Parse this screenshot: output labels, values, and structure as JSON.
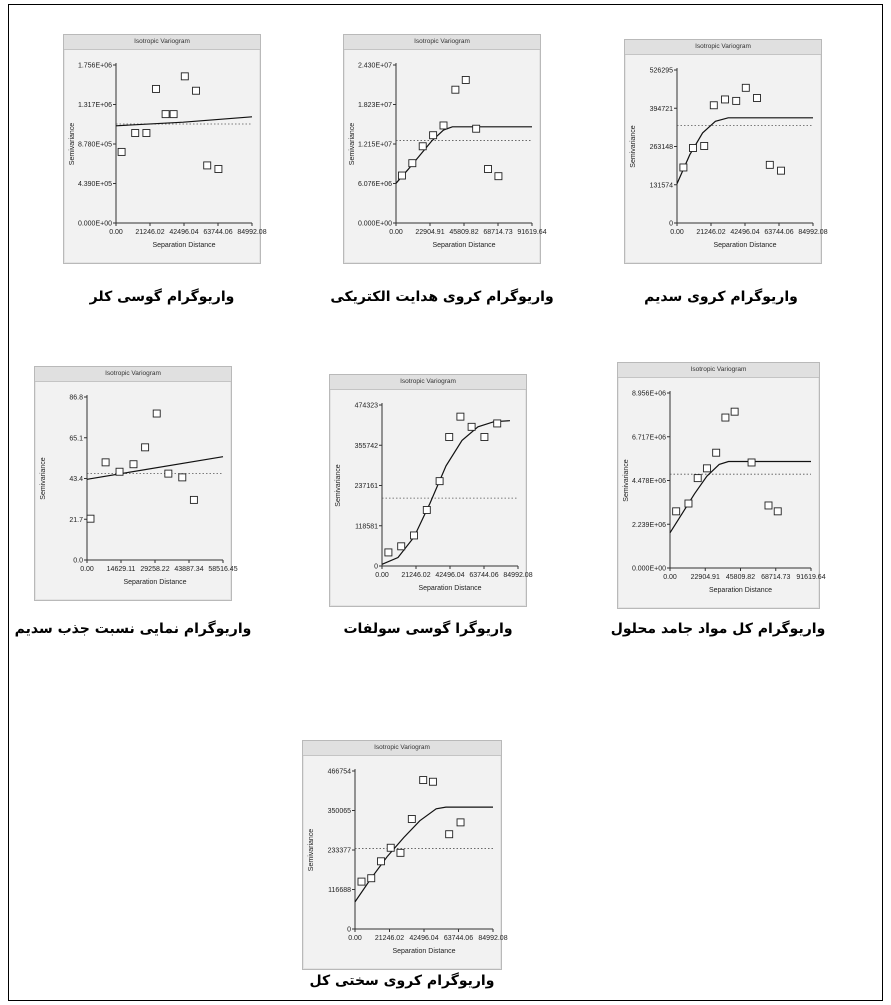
{
  "panel_title": "Isotropic Variogram",
  "chart_data": [
    {
      "type": "scatter",
      "caption": "واریوگرام گوسی کلر",
      "title": "Isotropic Variogram",
      "xlabel": "Separation Distance",
      "ylabel": "Semivariance",
      "y_ticks": [
        "0.000E+00",
        "4.390E+05",
        "8.780E+05",
        "1.317E+06",
        "1.756E+06"
      ],
      "ylim": [
        0,
        1756000
      ],
      "x_ticks": [
        "0.00",
        "21246.02",
        "42496.04",
        "63744.06",
        "84992.08"
      ],
      "xlim": [
        0,
        84992.08
      ],
      "points": [
        [
          3500,
          790000
        ],
        [
          12000,
          1000000
        ],
        [
          19000,
          1000000
        ],
        [
          25000,
          1490000
        ],
        [
          31000,
          1210000
        ],
        [
          36000,
          1210000
        ],
        [
          43000,
          1630000
        ],
        [
          50000,
          1470000
        ],
        [
          57000,
          640000
        ],
        [
          64000,
          600000
        ]
      ],
      "model_curve": [
        [
          0,
          1080000
        ],
        [
          42000,
          1120000
        ],
        [
          84992.08,
          1180000
        ]
      ],
      "sill_line": 1100000
    },
    {
      "type": "scatter",
      "caption": "واریوگرام کروی هدایت الکتریکی",
      "title": "Isotropic Variogram",
      "xlabel": "Separation Distance",
      "ylabel": "Semivariance",
      "y_ticks": [
        "0.000E+00",
        "6.076E+06",
        "1.215E+07",
        "1.823E+07",
        "2.430E+07"
      ],
      "ylim": [
        0,
        24300000
      ],
      "x_ticks": [
        "0.00",
        "22904.91",
        "45809.82",
        "68714.73",
        "91619.64"
      ],
      "xlim": [
        0,
        91619.64
      ],
      "points": [
        [
          4000,
          7300000
        ],
        [
          11000,
          9200000
        ],
        [
          18000,
          11800000
        ],
        [
          25000,
          13500000
        ],
        [
          32000,
          15000000
        ],
        [
          40000,
          20500000
        ],
        [
          47000,
          22000000
        ],
        [
          54000,
          14500000
        ],
        [
          62000,
          8300000
        ],
        [
          69000,
          7200000
        ]
      ],
      "model_curve": [
        [
          0,
          6100000
        ],
        [
          8000,
          8200000
        ],
        [
          16000,
          10400000
        ],
        [
          24000,
          12600000
        ],
        [
          32000,
          14300000
        ],
        [
          38000,
          14800000
        ],
        [
          91619.64,
          14800000
        ]
      ],
      "sill_line": 12700000
    },
    {
      "type": "scatter",
      "caption": "واریوگرام کروی سدیم",
      "title": "Isotropic Variogram",
      "xlabel": "Separation Distance",
      "ylabel": "Semivariance",
      "y_ticks": [
        "0",
        "131574",
        "263148",
        "394721",
        "526295"
      ],
      "ylim": [
        0,
        526295
      ],
      "x_ticks": [
        "0.00",
        "21246.02",
        "42496.04",
        "63744.06",
        "84992.08"
      ],
      "xlim": [
        0,
        84992.08
      ],
      "points": [
        [
          4000,
          191000
        ],
        [
          10000,
          258000
        ],
        [
          17000,
          265000
        ],
        [
          23000,
          405000
        ],
        [
          30000,
          425000
        ],
        [
          37000,
          420000
        ],
        [
          43000,
          465000
        ],
        [
          50000,
          430000
        ],
        [
          58000,
          200000
        ],
        [
          65000,
          180000
        ]
      ],
      "model_curve": [
        [
          0,
          135000
        ],
        [
          8000,
          235000
        ],
        [
          16000,
          310000
        ],
        [
          24000,
          350000
        ],
        [
          32000,
          362000
        ],
        [
          84992.08,
          362000
        ]
      ],
      "sill_line": 335000
    },
    {
      "type": "scatter",
      "caption": "واریوگرام نمایی نسبت جذب سدیم",
      "title": "Isotropic Variogram",
      "xlabel": "Separation Distance",
      "ylabel": "Semivariance",
      "y_ticks": [
        "0.0",
        "21.7",
        "43.4",
        "65.1",
        "86.8"
      ],
      "ylim": [
        0,
        86.8
      ],
      "x_ticks": [
        "0.00",
        "14629.11",
        "29258.22",
        "43887.34",
        "58516.45"
      ],
      "xlim": [
        0,
        58516.45
      ],
      "points": [
        [
          1500,
          22
        ],
        [
          8000,
          52
        ],
        [
          14000,
          47
        ],
        [
          20000,
          51
        ],
        [
          25000,
          60
        ],
        [
          30000,
          78
        ],
        [
          35000,
          46
        ],
        [
          41000,
          44
        ],
        [
          46000,
          32
        ]
      ],
      "model_curve": [
        [
          0,
          43
        ],
        [
          58516.45,
          55
        ]
      ],
      "sill_line": 46
    },
    {
      "type": "scatter",
      "caption": "واریوگرا گوسی سولفات",
      "title": "Isotropic Variogram",
      "xlabel": "Separation Distance",
      "ylabel": "Semivariance",
      "y_ticks": [
        "0",
        "118581",
        "237161",
        "355742",
        "474323"
      ],
      "ylim": [
        0,
        474323
      ],
      "x_ticks": [
        "0.00",
        "21246.02",
        "42496.04",
        "63744.06",
        "84992.08"
      ],
      "xlim": [
        0,
        84992.08
      ],
      "points": [
        [
          4000,
          40000
        ],
        [
          12000,
          58000
        ],
        [
          20000,
          90000
        ],
        [
          28000,
          165000
        ],
        [
          36000,
          250000
        ],
        [
          42000,
          380000
        ],
        [
          49000,
          440000
        ],
        [
          56000,
          410000
        ],
        [
          64000,
          380000
        ],
        [
          72000,
          420000
        ]
      ],
      "model_curve": [
        [
          0,
          5000
        ],
        [
          10000,
          25000
        ],
        [
          20000,
          85000
        ],
        [
          30000,
          185000
        ],
        [
          40000,
          295000
        ],
        [
          50000,
          370000
        ],
        [
          60000,
          410000
        ],
        [
          70000,
          425000
        ],
        [
          80000,
          428000
        ]
      ],
      "sill_line": 200000
    },
    {
      "type": "scatter",
      "caption": "واریوگرام کل مواد جامد محلول",
      "title": "Isotropic Variogram",
      "xlabel": "Separation Distance",
      "ylabel": "Semivariance",
      "y_ticks": [
        "0.000E+00",
        "2.239E+06",
        "4.478E+06",
        "6.717E+06",
        "8.956E+06"
      ],
      "ylim": [
        0,
        8956000
      ],
      "x_ticks": [
        "0.00",
        "22904.91",
        "45809.82",
        "68714.73",
        "91619.64"
      ],
      "xlim": [
        0,
        91619.64
      ],
      "points": [
        [
          4000,
          2900000
        ],
        [
          12000,
          3300000
        ],
        [
          18000,
          4600000
        ],
        [
          24000,
          5100000
        ],
        [
          30000,
          5900000
        ],
        [
          36000,
          7700000
        ],
        [
          42000,
          8000000
        ],
        [
          53000,
          5400000
        ],
        [
          64000,
          3200000
        ],
        [
          70000,
          2900000
        ]
      ],
      "model_curve": [
        [
          0,
          1800000
        ],
        [
          8000,
          2800000
        ],
        [
          16000,
          3800000
        ],
        [
          24000,
          4700000
        ],
        [
          32000,
          5300000
        ],
        [
          38000,
          5450000
        ],
        [
          91619.64,
          5450000
        ]
      ],
      "sill_line": 4800000
    },
    {
      "type": "scatter",
      "caption": "واریوگرام کروی سختی کل",
      "title": "Isotropic Variogram",
      "xlabel": "Separation Distance",
      "ylabel": "Semivariance",
      "y_ticks": [
        "0",
        "116688",
        "233377",
        "350065",
        "466754"
      ],
      "ylim": [
        0,
        466754
      ],
      "x_ticks": [
        "0.00",
        "21246.02",
        "42496.04",
        "63744.06",
        "84992.08"
      ],
      "xlim": [
        0,
        84992.08
      ],
      "points": [
        [
          4000,
          140000
        ],
        [
          10000,
          150000
        ],
        [
          16000,
          200000
        ],
        [
          22000,
          240000
        ],
        [
          28000,
          225000
        ],
        [
          35000,
          325000
        ],
        [
          42000,
          440000
        ],
        [
          48000,
          435000
        ],
        [
          58000,
          280000
        ],
        [
          65000,
          315000
        ]
      ],
      "model_curve": [
        [
          0,
          80000
        ],
        [
          10000,
          150000
        ],
        [
          20000,
          215000
        ],
        [
          30000,
          270000
        ],
        [
          40000,
          320000
        ],
        [
          50000,
          355000
        ],
        [
          56000,
          360000
        ],
        [
          84992.08,
          360000
        ]
      ],
      "sill_line": 238000
    }
  ]
}
